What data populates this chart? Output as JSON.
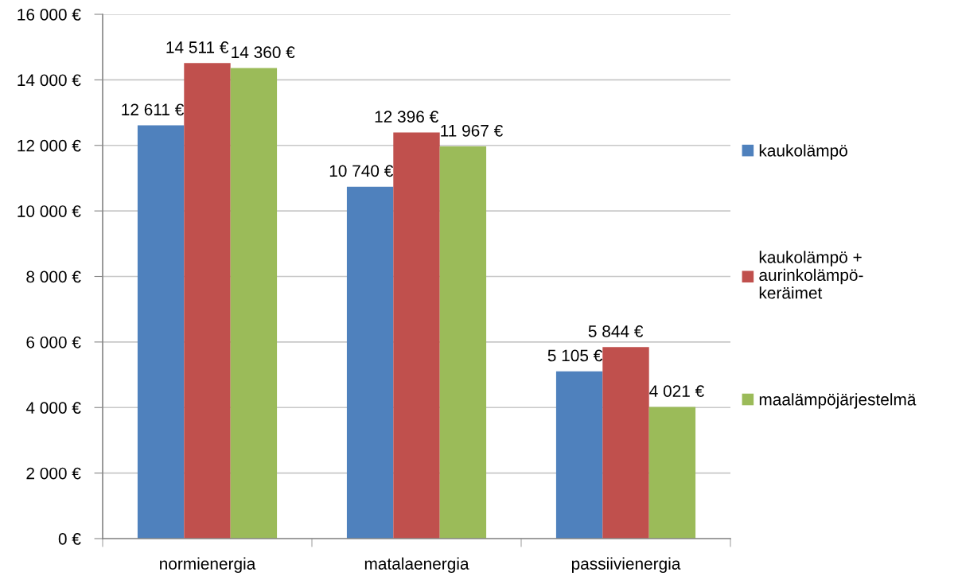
{
  "chart_data": {
    "type": "bar",
    "categories": [
      "normienergia",
      "matalaenergia",
      "passiivienergia"
    ],
    "series": [
      {
        "name": "kaukolämpö",
        "color": "#4f81bd",
        "values": [
          12611,
          10740,
          5105
        ],
        "value_labels": [
          "12 611 €",
          "10 740 €",
          "5 105 €"
        ]
      },
      {
        "name": "kaukolämpö + aurinkolämpö-keräimet",
        "color": "#c0504d",
        "values": [
          14511,
          12396,
          5844
        ],
        "value_labels": [
          "14 511 €",
          "12 396 €",
          "5 844 €"
        ]
      },
      {
        "name": "maalämpöjärjestelmä",
        "color": "#9bbb59",
        "values": [
          14360,
          11967,
          4021
        ],
        "value_labels": [
          "14 360 €",
          "11 967 €",
          "4 021 €"
        ]
      }
    ],
    "ylim": [
      0,
      16000
    ],
    "yticks": [
      {
        "value": 0,
        "label": "0 €"
      },
      {
        "value": 2000,
        "label": "2 000 €"
      },
      {
        "value": 4000,
        "label": "4 000 €"
      },
      {
        "value": 6000,
        "label": "6 000 €"
      },
      {
        "value": 8000,
        "label": "8 000 €"
      },
      {
        "value": 10000,
        "label": "10 000 €"
      },
      {
        "value": 12000,
        "label": "12 000 €"
      },
      {
        "value": 14000,
        "label": "14 000 €"
      },
      {
        "value": 16000,
        "label": "16 000 €"
      }
    ],
    "grid": "y",
    "legend": "right"
  }
}
